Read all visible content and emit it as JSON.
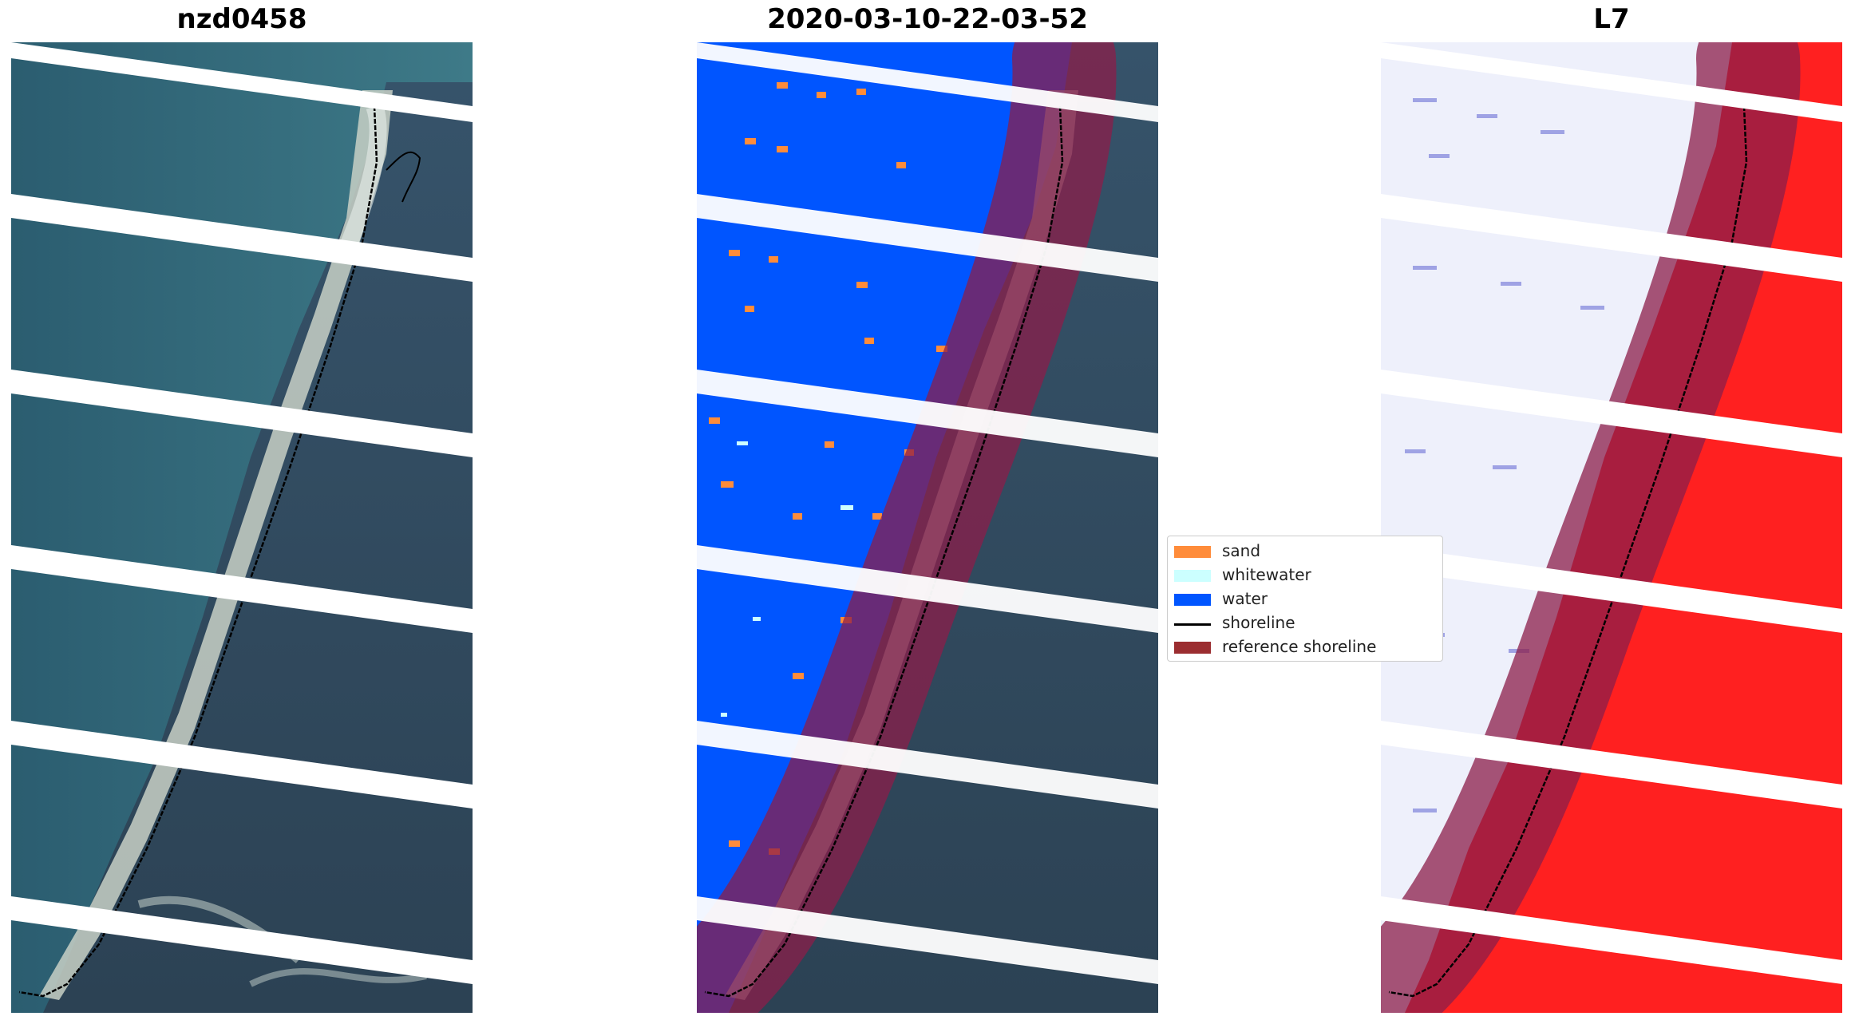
{
  "panels": [
    {
      "title": "nzd0458"
    },
    {
      "title": "2020-03-10-22-03-52"
    },
    {
      "title": "L7"
    }
  ],
  "legend": {
    "placement": "center, between middle and right panels",
    "items": [
      {
        "label": "sand",
        "color": "#ff8c3a",
        "kind": "patch"
      },
      {
        "label": "whitewater",
        "color": "#ccffff",
        "kind": "patch"
      },
      {
        "label": "water",
        "color": "#0055ff",
        "kind": "patch"
      },
      {
        "label": "shoreline",
        "color": "#000000",
        "kind": "line"
      },
      {
        "label": "reference shoreline",
        "color": "#9b2d30",
        "kind": "patch"
      }
    ]
  },
  "colors": {
    "ocean": "#2c5c6e",
    "land": "#2f4a5e",
    "beach": "#c9d2c8",
    "water_class": "#0055ff",
    "sand_class": "#ff8c3a",
    "reference_buffer": "#8b1e4a",
    "index_land": "#ff1a1a",
    "index_water": "#e8ecfb",
    "gap": "#ffffff"
  }
}
